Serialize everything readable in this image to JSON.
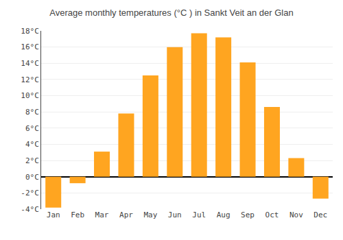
{
  "chart_data": {
    "type": "bar",
    "title": "Average monthly temperatures (°C ) in Sankt Veit an der Glan",
    "categories": [
      "Jan",
      "Feb",
      "Mar",
      "Apr",
      "May",
      "Jun",
      "Jul",
      "Aug",
      "Sep",
      "Oct",
      "Nov",
      "Dec"
    ],
    "values": [
      -3.8,
      -0.8,
      3.1,
      7.8,
      12.5,
      16.0,
      17.7,
      17.2,
      14.1,
      8.6,
      2.3,
      -2.7
    ],
    "color": "#FFA520",
    "ylim": [
      -4,
      18
    ],
    "yticks": [
      {
        "value": -4,
        "label": "-4°C"
      },
      {
        "value": -2,
        "label": "-2°C"
      },
      {
        "value": 0,
        "label": "0°C"
      },
      {
        "value": 2,
        "label": "2°C"
      },
      {
        "value": 4,
        "label": "4°C"
      },
      {
        "value": 6,
        "label": "6°C"
      },
      {
        "value": 8,
        "label": "8°C"
      },
      {
        "value": 10,
        "label": "10°C"
      },
      {
        "value": 12,
        "label": "12°C"
      },
      {
        "value": 14,
        "label": "14°C"
      },
      {
        "value": 16,
        "label": "16°C"
      },
      {
        "value": 18,
        "label": "18°C"
      }
    ],
    "grid": true
  }
}
